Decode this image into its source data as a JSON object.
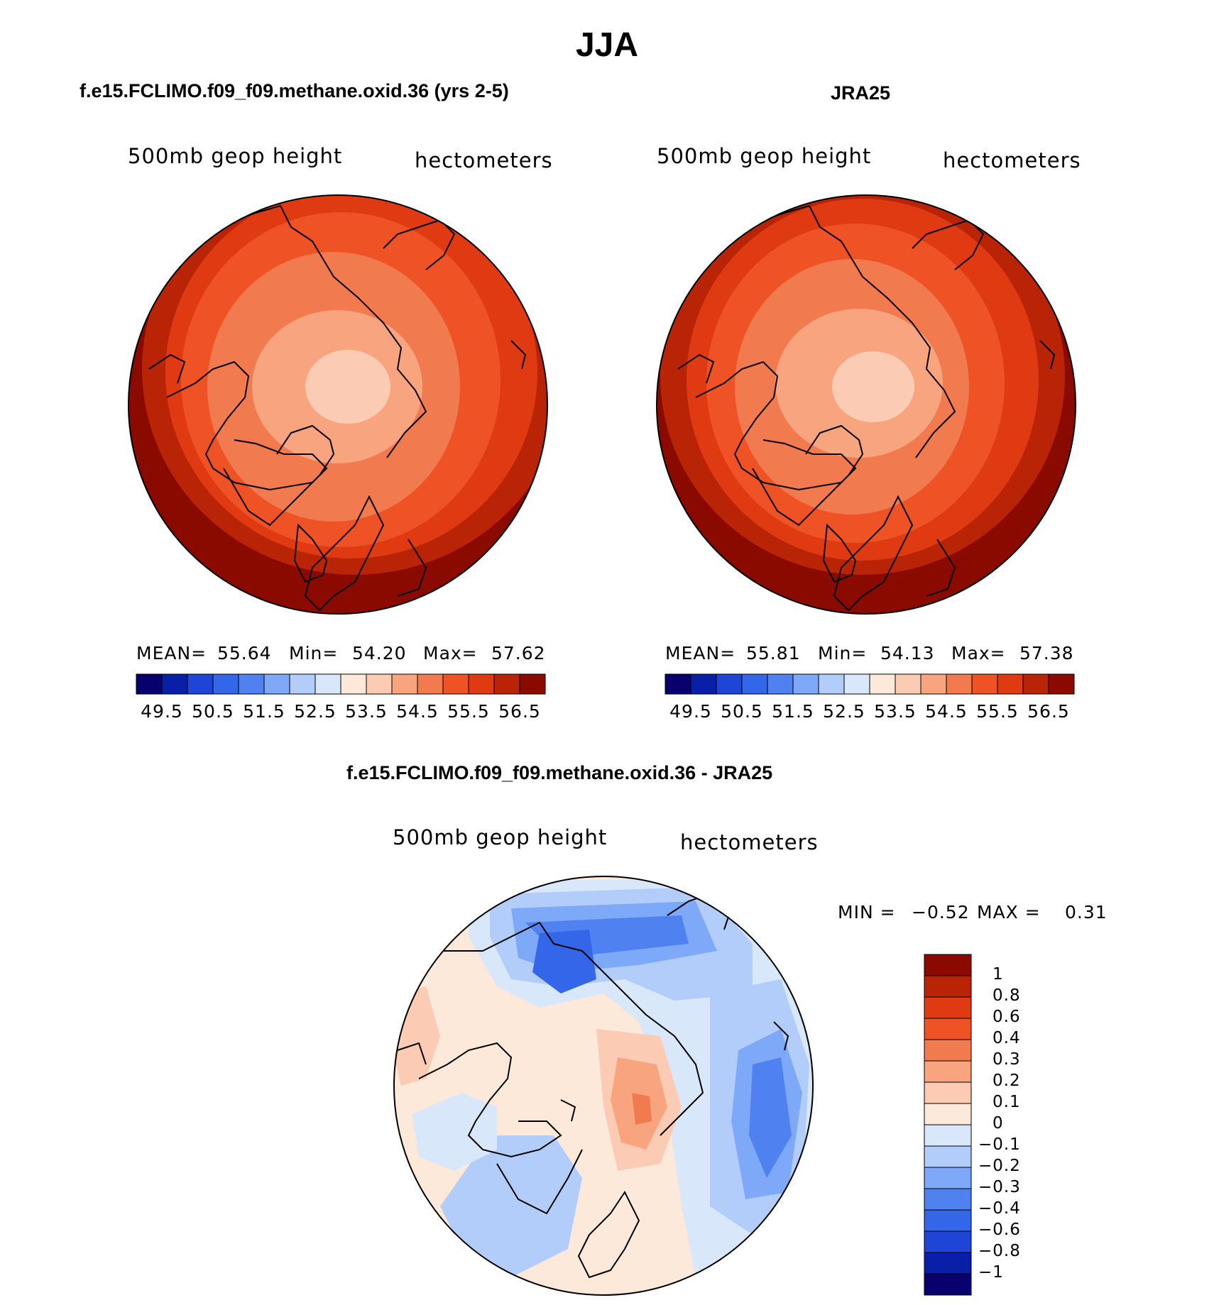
{
  "figure": {
    "title": "JJA"
  },
  "panel_model": {
    "heading": "f.e15.FCLIMO.f09_f09.methane.oxid.36 (yrs 2-5)",
    "variable": "500mb geop height",
    "units": "hectometers",
    "stats_text": {
      "mean_label": "MEAN=",
      "mean_value": "55.64",
      "min_label": "Min=",
      "min_value": "54.20",
      "max_label": "Max=",
      "max_value": "57.62"
    }
  },
  "panel_obs": {
    "heading": "JRA25",
    "variable": "500mb geop height",
    "units": "hectometers",
    "stats_text": {
      "mean_label": "MEAN=",
      "mean_value": "55.81",
      "min_label": "Min=",
      "min_value": "54.13",
      "max_label": "Max=",
      "max_value": "57.38"
    }
  },
  "panel_diff": {
    "heading": "f.e15.FCLIMO.f09_f09.methane.oxid.36 - JRA25",
    "variable": "500mb geop height",
    "units": "hectometers",
    "min_label": "MIN =",
    "min_value": "−0.52",
    "max_label": "MAX =",
    "max_value": "0.31"
  },
  "chart_data": [
    {
      "type": "heatmap",
      "projection": "north-polar-stereographic",
      "title": "f.e15.FCLIMO.f09_f09.methane.oxid.36 (yrs 2-5)",
      "variable": "500mb geop height",
      "units": "hectometers",
      "mean": 55.64,
      "min": 54.2,
      "max": 57.62,
      "contour_levels": [
        49.5,
        50,
        50.5,
        51,
        51.5,
        52,
        52.5,
        53,
        53.5,
        54,
        54.5,
        55,
        55.5,
        56,
        56.5
      ],
      "colorbar_tick_labels": [
        "49.5",
        "50.5",
        "51.5",
        "52.5",
        "53.5",
        "54.5",
        "55.5",
        "56.5"
      ]
    },
    {
      "type": "heatmap",
      "projection": "north-polar-stereographic",
      "title": "JRA25",
      "variable": "500mb geop height",
      "units": "hectometers",
      "mean": 55.81,
      "min": 54.13,
      "max": 57.38,
      "contour_levels": [
        49.5,
        50,
        50.5,
        51,
        51.5,
        52,
        52.5,
        53,
        53.5,
        54,
        54.5,
        55,
        55.5,
        56,
        56.5
      ],
      "colorbar_tick_labels": [
        "49.5",
        "50.5",
        "51.5",
        "52.5",
        "53.5",
        "54.5",
        "55.5",
        "56.5"
      ]
    },
    {
      "type": "heatmap",
      "projection": "north-polar-stereographic",
      "title": "f.e15.FCLIMO.f09_f09.methane.oxid.36 - JRA25",
      "variable": "500mb geop height",
      "units": "hectometers",
      "min": -0.52,
      "max": 0.31,
      "contour_levels": [
        1,
        0.8,
        0.6,
        0.4,
        0.3,
        0.2,
        0.1,
        0,
        -0.1,
        -0.2,
        -0.3,
        -0.4,
        -0.6,
        -0.8,
        -1
      ],
      "colorbar_tick_labels": [
        "1",
        "0.8",
        "0.6",
        "0.4",
        "0.3",
        "0.2",
        "0.1",
        "0",
        "−0.1",
        "−0.2",
        "−0.3",
        "−0.4",
        "−0.6",
        "−0.8",
        "−1"
      ]
    }
  ],
  "palettes": {
    "abs": [
      "#08006e",
      "#0a1fa8",
      "#1e44d8",
      "#3366e8",
      "#4f82f0",
      "#7ea8f8",
      "#b3cdfb",
      "#d9e7fb",
      "#fde9d9",
      "#fbccb3",
      "#f8a47e",
      "#f27a4f",
      "#ef5224",
      "#e03a12",
      "#b92406",
      "#8a0a00"
    ],
    "diff": [
      "#8a0a00",
      "#b92406",
      "#e03a12",
      "#ef5224",
      "#f27a4f",
      "#f8a47e",
      "#fbccb3",
      "#fde9d9",
      "#d9e7fb",
      "#b3cdfb",
      "#7ea8f8",
      "#4f82f0",
      "#3366e8",
      "#1e44d8",
      "#0a1fa8",
      "#08006e"
    ]
  }
}
